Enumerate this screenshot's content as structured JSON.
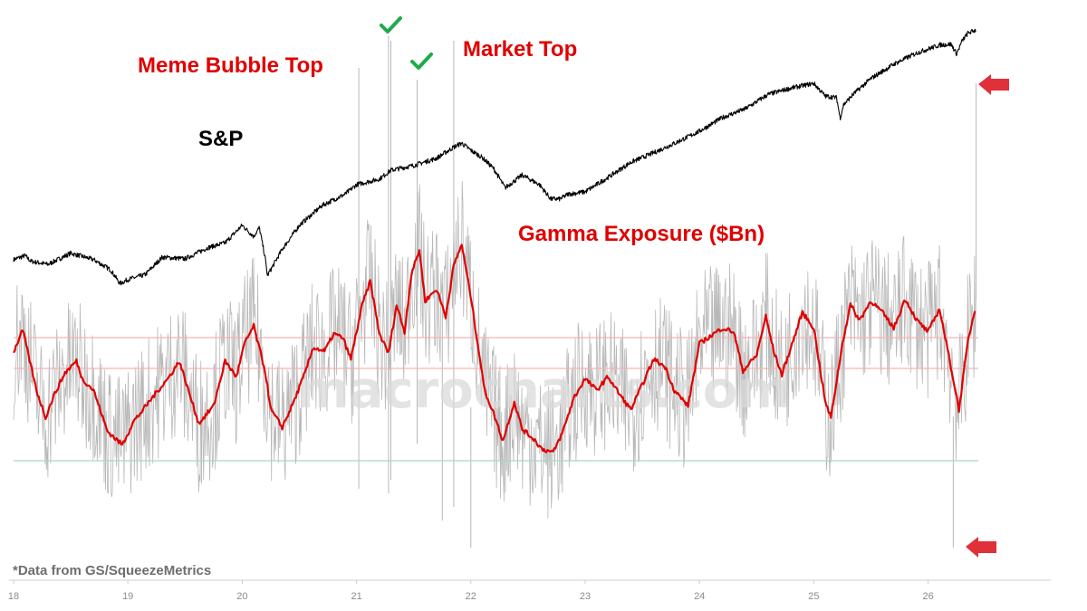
{
  "chart_data": {
    "type": "line",
    "title": "",
    "xlabel": "",
    "ylabel": "",
    "x_ticks": [
      "18",
      "19",
      "20",
      "21",
      "22",
      "23",
      "24",
      "25",
      "26"
    ],
    "x_range": [
      18,
      27
    ],
    "watermark": "macrocharts.com",
    "source_note": "*Data from GS/SqueezeMetrics",
    "annotations": {
      "meme_top": "Meme Bubble Top",
      "market_top": "Market Top",
      "sp": "S&P",
      "gamma": "Gamma Exposure ($Bn)",
      "check_marks": [
        21.28,
        21.55
      ]
    },
    "series": [
      {
        "name": "S&P",
        "color": "#000000",
        "relative_level": true,
        "x": [
          18.0,
          18.1,
          18.15,
          18.3,
          18.5,
          18.7,
          18.85,
          18.93,
          19.0,
          19.15,
          19.3,
          19.5,
          19.7,
          19.85,
          20.0,
          20.1,
          20.15,
          20.2,
          20.22,
          20.26,
          20.35,
          20.5,
          20.7,
          20.9,
          21.0,
          21.2,
          21.3,
          21.5,
          21.7,
          21.85,
          21.92,
          22.0,
          22.1,
          22.2,
          22.3,
          22.45,
          22.6,
          22.7,
          22.78,
          22.85,
          23.0,
          23.2,
          23.4,
          23.6,
          23.8,
          24.0,
          24.2,
          24.4,
          24.6,
          24.8,
          25.0,
          25.1,
          25.2,
          25.23,
          25.26,
          25.35,
          25.5,
          25.7,
          25.9,
          26.0,
          26.1,
          26.2,
          26.25,
          26.3,
          26.35,
          26.42
        ],
        "y": [
          0.32,
          0.37,
          0.3,
          0.26,
          0.4,
          0.32,
          0.19,
          0.02,
          0.07,
          0.13,
          0.35,
          0.33,
          0.47,
          0.53,
          0.75,
          0.61,
          0.72,
          0.35,
          0.12,
          0.22,
          0.45,
          0.75,
          1.0,
          1.14,
          1.26,
          1.33,
          1.44,
          1.5,
          1.59,
          1.73,
          1.78,
          1.69,
          1.6,
          1.46,
          1.22,
          1.38,
          1.26,
          1.08,
          1.08,
          1.14,
          1.17,
          1.35,
          1.54,
          1.66,
          1.79,
          1.93,
          2.1,
          2.21,
          2.39,
          2.47,
          2.53,
          2.37,
          2.35,
          2.09,
          2.26,
          2.4,
          2.59,
          2.77,
          2.91,
          2.96,
          3.01,
          3.02,
          2.9,
          3.07,
          3.16,
          3.2
        ]
      },
      {
        "name": "Gamma Exposure ($Bn)",
        "smoothed": true,
        "color": "#e00000",
        "relative_level": true,
        "x": [
          18.0,
          18.08,
          18.2,
          18.28,
          18.35,
          18.45,
          18.55,
          18.6,
          18.7,
          18.82,
          18.95,
          19.05,
          19.12,
          19.25,
          19.35,
          19.45,
          19.55,
          19.62,
          19.75,
          19.85,
          19.95,
          20.02,
          20.1,
          20.2,
          20.25,
          20.35,
          20.45,
          20.55,
          20.62,
          20.72,
          20.8,
          20.88,
          20.95,
          21.05,
          21.12,
          21.2,
          21.28,
          21.35,
          21.42,
          21.48,
          21.55,
          21.6,
          21.7,
          21.78,
          21.85,
          21.92,
          22.0,
          22.12,
          22.2,
          22.28,
          22.38,
          22.45,
          22.55,
          22.62,
          22.72,
          22.8,
          22.9,
          23.0,
          23.1,
          23.2,
          23.3,
          23.4,
          23.5,
          23.6,
          23.7,
          23.78,
          23.9,
          24.0,
          24.1,
          24.2,
          24.3,
          24.38,
          24.5,
          24.58,
          24.65,
          24.72,
          24.8,
          24.9,
          25.0,
          25.1,
          25.15,
          25.25,
          25.32,
          25.4,
          25.5,
          25.6,
          25.7,
          25.8,
          25.9,
          26.0,
          26.1,
          26.2,
          26.27,
          26.35,
          26.42
        ],
        "y": [
          2.58,
          3.15,
          1.6,
          0.9,
          1.45,
          2.05,
          2.35,
          1.9,
          1.6,
          0.55,
          0.2,
          0.8,
          1.05,
          1.55,
          1.9,
          2.35,
          1.4,
          0.75,
          1.2,
          2.35,
          1.95,
          2.8,
          3.25,
          2.1,
          1.1,
          0.65,
          1.3,
          2.05,
          2.7,
          2.6,
          3.05,
          2.95,
          2.4,
          3.8,
          4.4,
          3.05,
          2.55,
          3.8,
          3.1,
          4.6,
          5.2,
          3.9,
          4.2,
          3.5,
          4.8,
          5.35,
          4.0,
          1.6,
          1.0,
          0.3,
          1.3,
          0.6,
          0.35,
          0.1,
          0.0,
          0.5,
          1.4,
          1.9,
          1.6,
          1.95,
          1.5,
          1.1,
          1.75,
          2.4,
          2.2,
          1.6,
          1.2,
          2.8,
          3.0,
          3.2,
          3.1,
          2.1,
          2.5,
          3.5,
          2.6,
          2.0,
          2.7,
          3.6,
          3.2,
          1.3,
          0.9,
          2.8,
          3.8,
          3.4,
          3.9,
          3.6,
          3.2,
          3.95,
          3.4,
          3.1,
          3.7,
          2.2,
          1.1,
          2.9,
          3.8
        ]
      }
    ],
    "reference_lines": [
      {
        "level": "upper",
        "color": "#f3b3b3"
      },
      {
        "level": "lower",
        "color": "#f3b3b3"
      },
      {
        "level": "bottom",
        "color": "#a9d8c6"
      }
    ]
  }
}
